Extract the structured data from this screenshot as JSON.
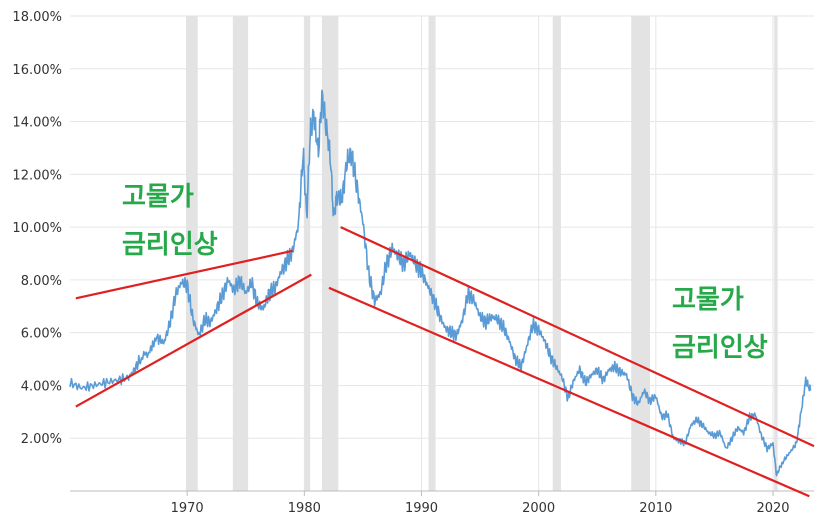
{
  "chart_data": {
    "type": "line",
    "title": "",
    "xlabel": "",
    "ylabel": "",
    "xlim": [
      1960.0,
      2023.5
    ],
    "ylim": [
      0,
      18
    ],
    "grid": true,
    "y_ticks": [
      {
        "value": 2,
        "label": "2.00%"
      },
      {
        "value": 4,
        "label": "4.00%"
      },
      {
        "value": 6,
        "label": "6.00%"
      },
      {
        "value": 8,
        "label": "8.00%"
      },
      {
        "value": 10,
        "label": "10.00%"
      },
      {
        "value": 12,
        "label": "12.00%"
      },
      {
        "value": 14,
        "label": "14.00%"
      },
      {
        "value": 16,
        "label": "16.00%"
      },
      {
        "value": 18,
        "label": "18.00%"
      }
    ],
    "x_ticks": [
      {
        "value": 1970,
        "label": "1970"
      },
      {
        "value": 1980,
        "label": "1980"
      },
      {
        "value": 1990,
        "label": "1990"
      },
      {
        "value": 2000,
        "label": "2000"
      },
      {
        "value": 2010,
        "label": "2010"
      },
      {
        "value": 2020,
        "label": "2020"
      }
    ],
    "recessions": [
      [
        1969.9,
        1970.9
      ],
      [
        1973.9,
        1975.2
      ],
      [
        1980.0,
        1980.5
      ],
      [
        1981.5,
        1982.9
      ],
      [
        1990.6,
        1991.2
      ],
      [
        2001.2,
        2001.9
      ],
      [
        2007.9,
        2009.5
      ],
      [
        2020.1,
        2020.4
      ]
    ],
    "series": [
      {
        "color": "#5b9bd5",
        "x": [
          1960.0,
          1961.0,
          1962.0,
          1963.0,
          1964.0,
          1965.0,
          1965.5,
          1966.0,
          1966.8,
          1967.5,
          1968.0,
          1968.5,
          1969.0,
          1969.5,
          1970.0,
          1970.5,
          1971.0,
          1971.5,
          1972.0,
          1972.5,
          1973.0,
          1973.5,
          1974.0,
          1974.5,
          1975.0,
          1975.5,
          1976.0,
          1976.5,
          1977.0,
          1977.5,
          1978.0,
          1978.5,
          1979.0,
          1979.5,
          1979.9,
          1980.2,
          1980.5,
          1980.8,
          1981.2,
          1981.5,
          1981.8,
          1982.2,
          1982.5,
          1982.8,
          1983.2,
          1983.6,
          1984.0,
          1984.5,
          1985.0,
          1985.5,
          1986.0,
          1986.5,
          1987.0,
          1987.5,
          1988.0,
          1988.5,
          1989.0,
          1989.5,
          1990.0,
          1990.5,
          1991.0,
          1991.5,
          1992.0,
          1992.5,
          1993.0,
          1993.5,
          1994.0,
          1994.5,
          1995.0,
          1995.5,
          1996.0,
          1996.5,
          1997.0,
          1997.5,
          1998.0,
          1998.5,
          1999.0,
          1999.5,
          2000.0,
          2000.5,
          2001.0,
          2001.5,
          2002.0,
          2002.5,
          2003.0,
          2003.5,
          2004.0,
          2004.5,
          2005.0,
          2005.5,
          2006.0,
          2006.5,
          2007.0,
          2007.5,
          2008.0,
          2008.5,
          2009.0,
          2009.5,
          2010.0,
          2010.5,
          2011.0,
          2011.5,
          2012.0,
          2012.5,
          2013.0,
          2013.5,
          2014.0,
          2014.5,
          2015.0,
          2015.5,
          2016.0,
          2016.5,
          2017.0,
          2017.5,
          2018.0,
          2018.5,
          2019.0,
          2019.5,
          2020.0,
          2020.3,
          2020.6,
          2021.0,
          2021.5,
          2022.0,
          2022.4,
          2022.8,
          2023.2
        ],
        "values": [
          4.1,
          3.9,
          4.0,
          4.1,
          4.2,
          4.3,
          4.6,
          5.0,
          5.3,
          5.8,
          5.6,
          6.3,
          7.4,
          7.9,
          7.8,
          6.5,
          5.9,
          6.5,
          6.4,
          6.9,
          7.4,
          8.0,
          7.6,
          8.0,
          7.5,
          7.9,
          7.1,
          6.9,
          7.5,
          7.7,
          8.3,
          8.7,
          9.1,
          10.1,
          12.8,
          10.4,
          13.5,
          14.3,
          12.8,
          15.0,
          14.0,
          12.8,
          10.4,
          11.2,
          11.0,
          12.4,
          12.8,
          11.5,
          10.2,
          8.2,
          7.2,
          7.5,
          8.6,
          9.2,
          8.9,
          8.6,
          9.0,
          8.6,
          8.3,
          7.8,
          7.3,
          6.7,
          6.2,
          6.0,
          5.9,
          6.5,
          7.5,
          7.2,
          6.6,
          6.4,
          6.6,
          6.5,
          6.2,
          5.7,
          5.0,
          4.7,
          5.5,
          6.3,
          6.1,
          5.7,
          5.1,
          4.7,
          4.3,
          3.5,
          4.2,
          4.6,
          4.1,
          4.4,
          4.6,
          4.2,
          4.6,
          4.7,
          4.5,
          4.4,
          3.6,
          3.3,
          3.8,
          3.4,
          3.6,
          2.8,
          2.9,
          2.0,
          1.9,
          1.8,
          2.5,
          2.7,
          2.5,
          2.2,
          2.1,
          2.2,
          1.6,
          2.0,
          2.4,
          2.2,
          2.8,
          2.9,
          2.1,
          1.6,
          1.8,
          0.6,
          0.9,
          1.2,
          1.5,
          1.8,
          3.0,
          4.2,
          3.8
        ]
      }
    ],
    "annotations": [
      {
        "text": "고물가",
        "color": "#27a84a"
      },
      {
        "text": "금리인상",
        "color": "#27a84a"
      },
      {
        "text": "고물가",
        "color": "#27a84a"
      },
      {
        "text": "금리인상",
        "color": "#27a84a"
      }
    ],
    "trendlines": [
      {
        "x": [
          1960.5,
          1979.0
        ],
        "y": [
          7.3,
          9.1
        ],
        "color": "#e02020"
      },
      {
        "x": [
          1960.5,
          1980.6
        ],
        "y": [
          3.2,
          8.2
        ],
        "color": "#e02020"
      },
      {
        "x": [
          1983.1,
          2023.5
        ],
        "y": [
          10.0,
          1.7
        ],
        "color": "#e02020"
      },
      {
        "x": [
          1982.1,
          2023.1
        ],
        "y": [
          7.7,
          -0.2
        ],
        "color": "#e02020"
      }
    ]
  }
}
